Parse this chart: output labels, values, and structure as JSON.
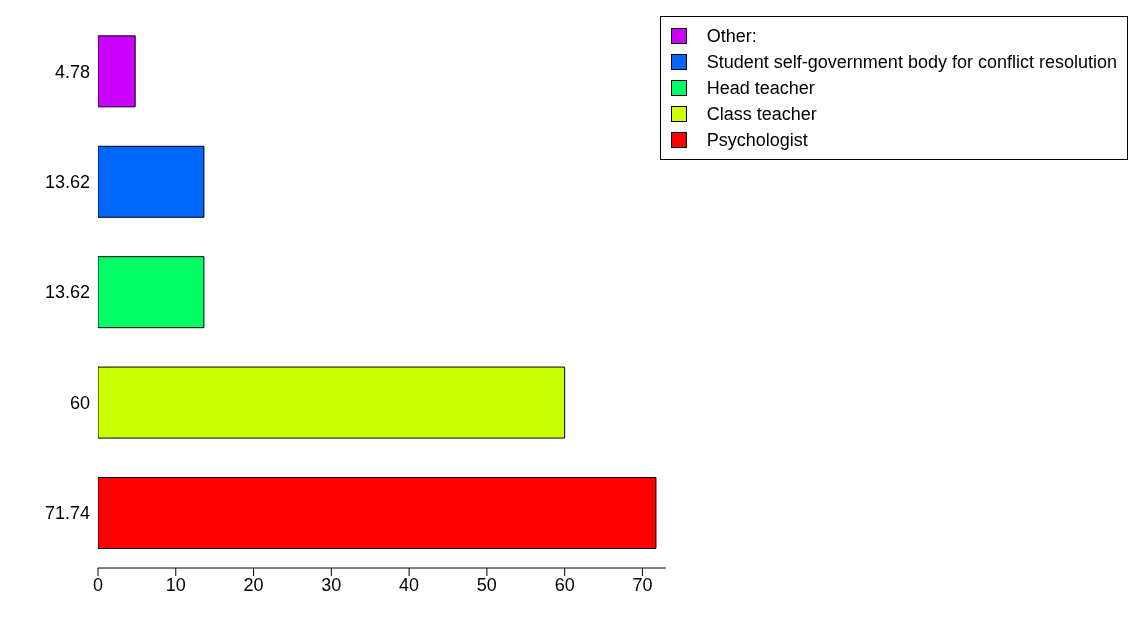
{
  "chart_data": {
    "type": "bar",
    "orientation": "horizontal",
    "stacked": true,
    "categories": [
      "4.78",
      "13.62",
      "13.62",
      "60",
      "71.74"
    ],
    "series": [
      {
        "name": "Other:",
        "color": "#cc00ff",
        "values": [
          4.78,
          null,
          null,
          null,
          null
        ]
      },
      {
        "name": "Student self-government body for conflict resolution",
        "color": "#0066ff",
        "values": [
          null,
          13.62,
          null,
          null,
          null
        ]
      },
      {
        "name": "Head teacher",
        "color": "#00ff66",
        "values": [
          null,
          null,
          13.62,
          null,
          null
        ]
      },
      {
        "name": "Class teacher",
        "color": "#ccff00",
        "values": [
          null,
          null,
          null,
          60,
          null
        ]
      },
      {
        "name": "Psychologist",
        "color": "#ff0000",
        "values": [
          null,
          null,
          null,
          null,
          71.74
        ]
      }
    ],
    "xlim": [
      0,
      73
    ],
    "xticks": [
      0,
      10,
      20,
      30,
      40,
      50,
      60,
      70
    ],
    "grid": false,
    "legend": "top right"
  }
}
